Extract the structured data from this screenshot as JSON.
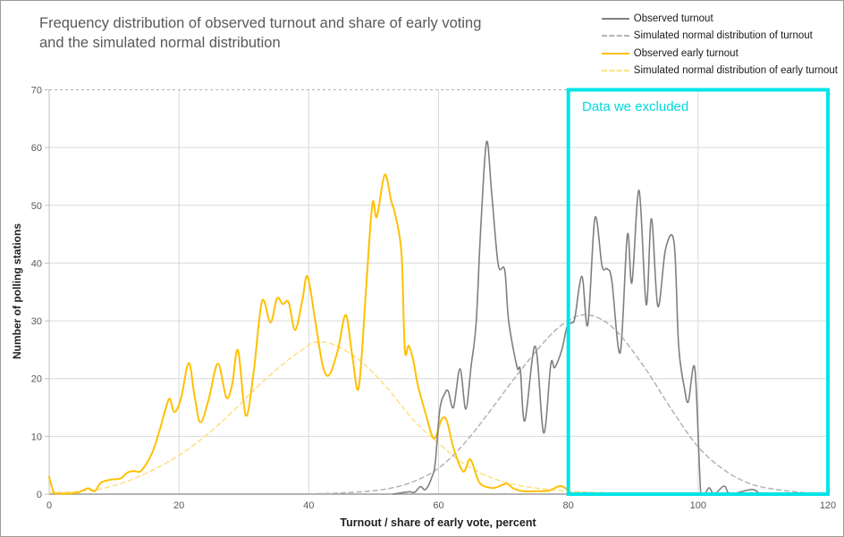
{
  "title": {
    "text": "Frequency distribution of observed turnout and share of early voting\nand the simulated normal distribution"
  },
  "legend": {
    "position": "top-right",
    "items": [
      {
        "label": "Observed turnout",
        "style": "solid",
        "color": "#7f7f7f"
      },
      {
        "label": "Simulated normal distribution of turnout",
        "style": "dashed",
        "color": "#b3b3b3"
      },
      {
        "label": "Observed early turnout",
        "style": "solid",
        "color": "#ffc000"
      },
      {
        "label": "Simulated normal distribution of early turnout",
        "style": "dashed",
        "color": "#ffdf80"
      }
    ]
  },
  "annotation": {
    "label": "Data we excluded",
    "x_start": 80,
    "x_end": 120,
    "color": "#00e4e8"
  },
  "colors": {
    "observed_turnout": "#7f7f7f",
    "simulated_turnout": "#b3b3b3",
    "observed_early_turnout": "#ffc000",
    "simulated_early_turnout": "#ffdf80",
    "gridline": "#d9d9d9",
    "top_gridline": "#a9b4c4",
    "axis_line": "#9b9b9b",
    "tick_text": "#595959",
    "excluded_box": "#00e4e8"
  },
  "chart_data": {
    "type": "line",
    "title": "Frequency distribution of observed turnout and share of early voting and the simulated normal distribution",
    "xlabel": "Turnout / share of early vote, percent",
    "ylabel": "Number of polling stations",
    "xlim": [
      0,
      120
    ],
    "ylim": [
      0,
      70
    ],
    "x_ticks": [
      0,
      20,
      40,
      60,
      80,
      100,
      120
    ],
    "y_ticks": [
      0,
      10,
      20,
      30,
      40,
      50,
      60,
      70
    ],
    "grid": true,
    "legend_position": "top-right",
    "series": [
      {
        "name": "Observed turnout",
        "style": "solid",
        "color": "#7f7f7f",
        "width": 1.6,
        "points": [
          [
            53,
            0
          ],
          [
            55.4,
            0.4
          ],
          [
            56.3,
            0.3
          ],
          [
            57.2,
            1.3
          ],
          [
            58,
            0.8
          ],
          [
            59,
            3
          ],
          [
            59.5,
            5.5
          ],
          [
            60.2,
            14.7
          ],
          [
            61,
            17.5
          ],
          [
            61.5,
            17.8
          ],
          [
            62.3,
            15
          ],
          [
            63.3,
            21.7
          ],
          [
            64.2,
            14.7
          ],
          [
            65,
            22
          ],
          [
            65.8,
            29.7
          ],
          [
            66.5,
            46
          ],
          [
            67.4,
            61
          ],
          [
            68.2,
            52
          ],
          [
            69.2,
            39.7
          ],
          [
            70.2,
            38.8
          ],
          [
            70.8,
            30
          ],
          [
            72.1,
            22
          ],
          [
            72.6,
            21.5
          ],
          [
            73.3,
            12.7
          ],
          [
            74.9,
            25.6
          ],
          [
            76.2,
            10.6
          ],
          [
            77.3,
            22.5
          ],
          [
            77.9,
            21.9
          ],
          [
            79,
            25
          ],
          [
            79.8,
            29
          ],
          [
            80.5,
            29.7
          ],
          [
            81,
            30.5
          ],
          [
            82.1,
            37.7
          ],
          [
            83,
            29.3
          ],
          [
            84.1,
            47.8
          ],
          [
            85.2,
            39.5
          ],
          [
            86,
            39
          ],
          [
            86.7,
            37
          ],
          [
            88,
            24.5
          ],
          [
            89.1,
            44.9
          ],
          [
            89.8,
            36.6
          ],
          [
            90.9,
            52.6
          ],
          [
            92,
            32.8
          ],
          [
            92.8,
            47.7
          ],
          [
            93.8,
            32.5
          ],
          [
            95,
            42.5
          ],
          [
            96.3,
            43.5
          ],
          [
            97,
            25.6
          ],
          [
            97.9,
            18.3
          ],
          [
            98.5,
            16
          ],
          [
            99.5,
            21.7
          ],
          [
            100.4,
            0.3
          ],
          [
            101,
            0
          ],
          [
            101.7,
            1.1
          ],
          [
            102.5,
            0
          ],
          [
            104,
            1.4
          ],
          [
            105,
            0.05
          ],
          [
            108.3,
            0.8
          ],
          [
            109.5,
            0
          ]
        ]
      },
      {
        "name": "Simulated normal distribution of turnout",
        "style": "dashed",
        "color": "#b3b3b3",
        "width": 1.5,
        "points": [
          [
            40,
            0.05
          ],
          [
            44,
            0.15
          ],
          [
            48,
            0.4
          ],
          [
            52,
            0.9
          ],
          [
            56,
            2.1
          ],
          [
            60,
            4.5
          ],
          [
            64,
            8.8
          ],
          [
            68,
            14.5
          ],
          [
            72,
            20.5
          ],
          [
            76,
            26
          ],
          [
            79,
            29.3
          ],
          [
            82,
            31
          ],
          [
            85,
            30.3
          ],
          [
            88,
            27.5
          ],
          [
            92,
            21.5
          ],
          [
            96,
            14.5
          ],
          [
            100,
            8.2
          ],
          [
            104,
            4.2
          ],
          [
            108,
            1.8
          ],
          [
            112,
            0.8
          ],
          [
            116,
            0.3
          ],
          [
            120,
            0.1
          ]
        ]
      },
      {
        "name": "Observed early turnout",
        "style": "solid",
        "color": "#ffc000",
        "width": 2,
        "points": [
          [
            0,
            3
          ],
          [
            0.7,
            0.3
          ],
          [
            1.5,
            0.1
          ],
          [
            3,
            0.1
          ],
          [
            4.5,
            0.3
          ],
          [
            6,
            1
          ],
          [
            7,
            0.5
          ],
          [
            8,
            2
          ],
          [
            9.5,
            2.5
          ],
          [
            11,
            2.7
          ],
          [
            12,
            3.7
          ],
          [
            13,
            4
          ],
          [
            14,
            3.9
          ],
          [
            15,
            5.3
          ],
          [
            16,
            7.5
          ],
          [
            17,
            11
          ],
          [
            18,
            15
          ],
          [
            18.6,
            16.5
          ],
          [
            19.3,
            14.2
          ],
          [
            20.3,
            16.5
          ],
          [
            21.5,
            22.7
          ],
          [
            22.4,
            17
          ],
          [
            23.3,
            12.4
          ],
          [
            24.6,
            16.5
          ],
          [
            26,
            22.6
          ],
          [
            27.3,
            16.7
          ],
          [
            28.2,
            19
          ],
          [
            29.1,
            24.9
          ],
          [
            30.3,
            13.6
          ],
          [
            31.5,
            21
          ],
          [
            32.8,
            33.4
          ],
          [
            34.1,
            29.7
          ],
          [
            35.1,
            33.9
          ],
          [
            36,
            32.9
          ],
          [
            36.9,
            33.2
          ],
          [
            37.9,
            28.4
          ],
          [
            39,
            33.5
          ],
          [
            39.8,
            37.7
          ],
          [
            41,
            30
          ],
          [
            42.2,
            22
          ],
          [
            43.2,
            20.7
          ],
          [
            44.5,
            25
          ],
          [
            45.7,
            31
          ],
          [
            46.7,
            24
          ],
          [
            47.7,
            18.4
          ],
          [
            48.8,
            35
          ],
          [
            49.8,
            50.2
          ],
          [
            50.5,
            48
          ],
          [
            51.7,
            55.3
          ],
          [
            52.7,
            50.8
          ],
          [
            53.3,
            48.5
          ],
          [
            54.3,
            41.6
          ],
          [
            54.8,
            25
          ],
          [
            55.4,
            25.7
          ],
          [
            56.1,
            23.2
          ],
          [
            56.8,
            18.9
          ],
          [
            58,
            14
          ],
          [
            59.3,
            9.6
          ],
          [
            60.5,
            13
          ],
          [
            61.3,
            12.6
          ],
          [
            62.3,
            8
          ],
          [
            63.8,
            3.9
          ],
          [
            64.9,
            6
          ],
          [
            66.3,
            2
          ],
          [
            68,
            1.1
          ],
          [
            69,
            1.2
          ],
          [
            70.5,
            1.8
          ],
          [
            71.5,
            1
          ],
          [
            73,
            0.5
          ],
          [
            75,
            0.5
          ],
          [
            77,
            0.6
          ],
          [
            78.9,
            1.4
          ],
          [
            80.5,
            0.1
          ]
        ]
      },
      {
        "name": "Simulated normal distribution of early turnout",
        "style": "dashed",
        "color": "#ffdf80",
        "width": 1.5,
        "points": [
          [
            0,
            0.2
          ],
          [
            4,
            0.45
          ],
          [
            7,
            0.75
          ],
          [
            8,
            0.9
          ],
          [
            12,
            2.2
          ],
          [
            16,
            4.2
          ],
          [
            20,
            6.7
          ],
          [
            24,
            10
          ],
          [
            28,
            14
          ],
          [
            32,
            18.5
          ],
          [
            36,
            22.5
          ],
          [
            39,
            25
          ],
          [
            41,
            26.3
          ],
          [
            44,
            25.8
          ],
          [
            48,
            23
          ],
          [
            52,
            18.5
          ],
          [
            56,
            13
          ],
          [
            60,
            8.8
          ],
          [
            64,
            5.2
          ],
          [
            68,
            2.9
          ],
          [
            72,
            1.6
          ],
          [
            76,
            0.9
          ],
          [
            80,
            0.5
          ],
          [
            84,
            0.3
          ],
          [
            88,
            0.15
          ],
          [
            90,
            0.1
          ]
        ]
      }
    ]
  }
}
